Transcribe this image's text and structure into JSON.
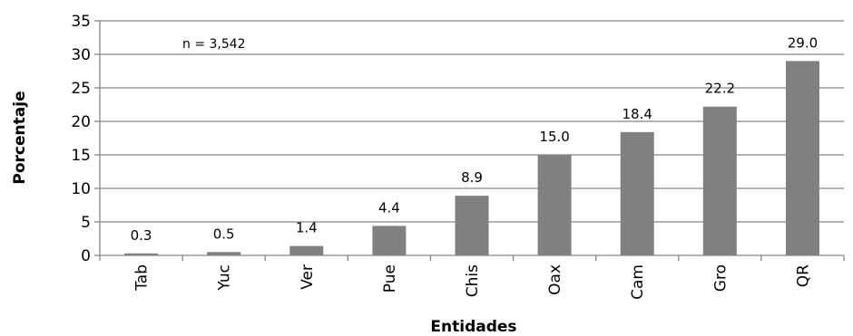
{
  "chart_data": {
    "type": "bar",
    "categories": [
      "Tab",
      "Yuc",
      "Ver",
      "Pue",
      "Chis",
      "Oax",
      "Cam",
      "Gro",
      "QR"
    ],
    "values": [
      0.3,
      0.5,
      1.4,
      4.4,
      8.9,
      15.0,
      18.4,
      22.2,
      29.0
    ],
    "data_labels": [
      "0.3",
      "0.5",
      "1.4",
      "4.4",
      "8.9",
      "15.0",
      "18.4",
      "22.2",
      "29.0"
    ],
    "title": "",
    "xlabel": "Entidades",
    "ylabel": "Porcentaje",
    "ylim": [
      0,
      35
    ],
    "yticks": [
      0,
      5,
      10,
      15,
      20,
      25,
      30,
      35
    ],
    "grid": true,
    "annotation": "n = 3,542",
    "colors": {
      "bar": "#808080",
      "grid": "#868686",
      "axis": "#868686"
    }
  }
}
